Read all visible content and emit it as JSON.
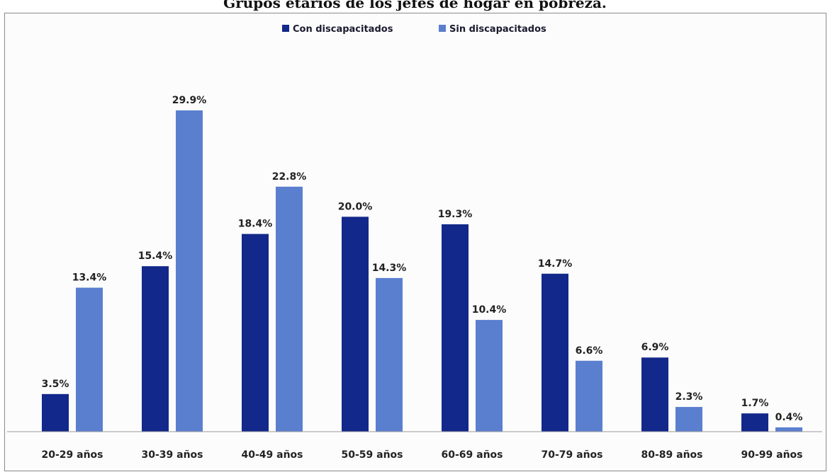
{
  "chart_data": {
    "type": "bar",
    "title": "Grupos etarios de los jefes de hogar en pobreza.",
    "categories": [
      "20-29 años",
      "30-39 años",
      "40-49 años",
      "50-59 años",
      "60-69 años",
      "70-79 años",
      "80-89 años",
      "90-99 años"
    ],
    "series": [
      {
        "name": "Con discapacitados",
        "color": "#12288a",
        "values": [
          3.5,
          15.4,
          18.4,
          20.0,
          19.3,
          14.7,
          6.9,
          1.7
        ],
        "labels": [
          "3.5%",
          "15.4%",
          "18.4%",
          "20.0%",
          "19.3%",
          "14.7%",
          "6.9%",
          "1.7%"
        ]
      },
      {
        "name": "Sin discapacitados",
        "color": "#5b7fcf",
        "values": [
          13.4,
          29.9,
          22.8,
          14.3,
          10.4,
          6.6,
          2.3,
          0.4
        ],
        "labels": [
          "13.4%",
          "29.9%",
          "22.8%",
          "14.3%",
          "10.4%",
          "6.6%",
          "2.3%",
          "0.4%"
        ]
      }
    ],
    "xlabel": "",
    "ylabel": "",
    "ylim": [
      0,
      32
    ],
    "grid": false,
    "legend_position": "top-center",
    "value_axis_visible": false
  }
}
